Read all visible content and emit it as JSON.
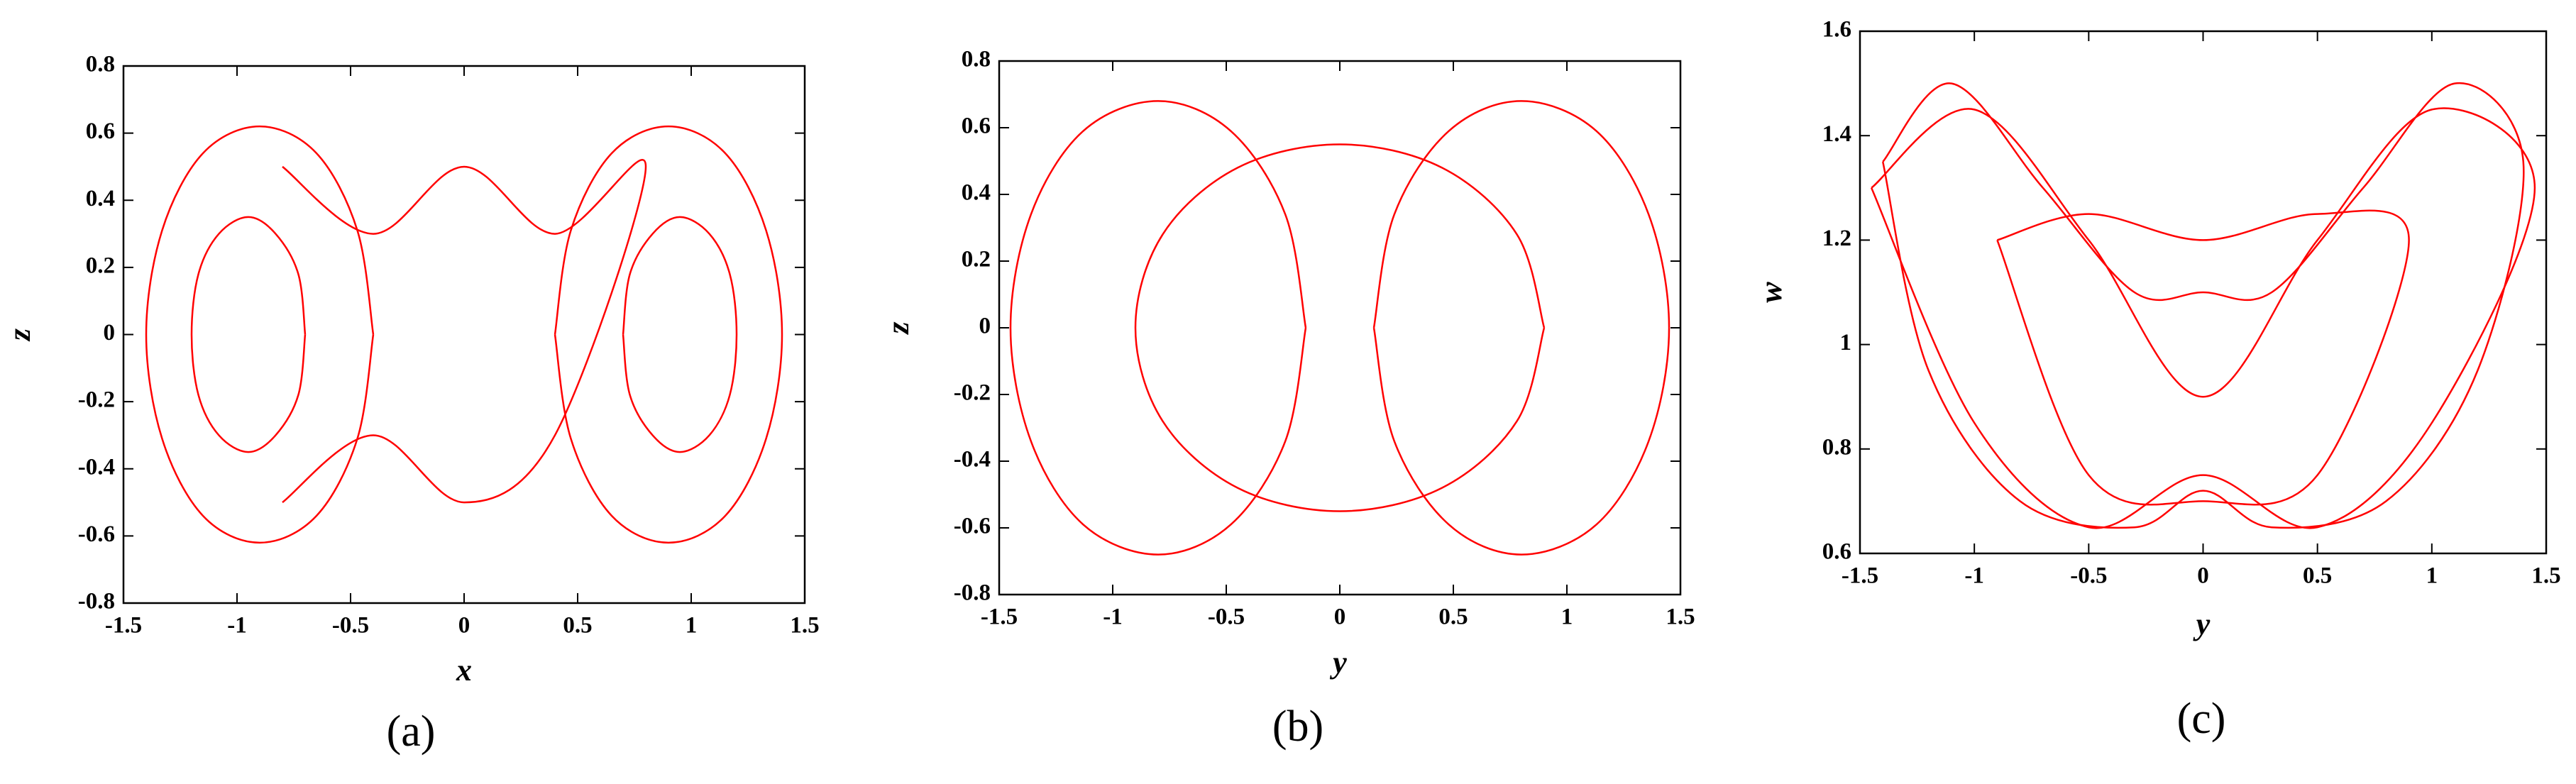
{
  "chart_data": [
    {
      "type": "line",
      "xlabel": "x",
      "ylabel": "z",
      "caption": "(a)",
      "xlim": [
        -1.5,
        1.5
      ],
      "ylim": [
        -0.8,
        0.8
      ],
      "xticks": [
        -1.5,
        -1,
        -0.5,
        0,
        0.5,
        1,
        1.5
      ],
      "yticks": [
        -0.8,
        -0.6,
        -0.4,
        -0.2,
        0,
        0.2,
        0.4,
        0.6,
        0.8
      ],
      "series": [
        {
          "color": "#ff0000",
          "x": [
            -0.4,
            -0.47,
            -0.65,
            -0.9,
            -1.15,
            -1.33,
            -1.4,
            -1.33,
            -1.15,
            -0.9,
            -0.65,
            -0.47,
            -0.4
          ],
          "values": [
            0,
            0.31,
            0.54,
            0.62,
            0.54,
            0.31,
            0,
            -0.31,
            -0.54,
            -0.62,
            -0.54,
            -0.31,
            0
          ]
        },
        {
          "color": "#ff0000",
          "x": [
            -0.7,
            -0.73,
            -0.83,
            -0.95,
            -1.08,
            -1.17,
            -1.2,
            -1.17,
            -1.08,
            -0.95,
            -0.83,
            -0.73,
            -0.7
          ],
          "values": [
            0,
            0.18,
            0.3,
            0.35,
            0.3,
            0.18,
            0,
            -0.18,
            -0.3,
            -0.35,
            -0.3,
            -0.18,
            0
          ]
        },
        {
          "color": "#ff0000",
          "x": [
            0.4,
            0.47,
            0.65,
            0.9,
            1.15,
            1.33,
            1.4,
            1.33,
            1.15,
            0.9,
            0.65,
            0.47,
            0.4
          ],
          "values": [
            0,
            0.31,
            0.54,
            0.62,
            0.54,
            0.31,
            0,
            -0.31,
            -0.54,
            -0.62,
            -0.54,
            -0.31,
            0
          ]
        },
        {
          "color": "#ff0000",
          "x": [
            0.7,
            0.73,
            0.83,
            0.95,
            1.08,
            1.17,
            1.2,
            1.17,
            1.08,
            0.95,
            0.83,
            0.73,
            0.7
          ],
          "values": [
            0,
            0.18,
            0.3,
            0.35,
            0.3,
            0.18,
            0,
            -0.18,
            -0.3,
            -0.35,
            -0.3,
            -0.18,
            0
          ]
        },
        {
          "color": "#ff0000",
          "x": [
            -0.8,
            -0.4,
            0,
            0.4,
            0.8,
            0.4,
            0,
            -0.4,
            -0.8
          ],
          "values": [
            0.5,
            0.3,
            0.5,
            0.3,
            0.5,
            -0.3,
            -0.5,
            -0.3,
            -0.5
          ]
        }
      ]
    },
    {
      "type": "line",
      "xlabel": "y",
      "ylabel": "z",
      "caption": "(b)",
      "xlim": [
        -1.5,
        1.5
      ],
      "ylim": [
        -0.8,
        0.8
      ],
      "xticks": [
        -1.5,
        -1,
        -0.5,
        0,
        0.5,
        1,
        1.5
      ],
      "yticks": [
        -0.8,
        -0.6,
        -0.4,
        -0.2,
        0,
        0.2,
        0.4,
        0.6,
        0.8
      ],
      "series": [
        {
          "color": "#ff0000",
          "x": [
            -0.15,
            -0.24,
            -0.48,
            -0.8,
            -1.13,
            -1.36,
            -1.45,
            -1.36,
            -1.13,
            -0.8,
            -0.48,
            -0.24,
            -0.15
          ],
          "values": [
            0,
            0.34,
            0.59,
            0.68,
            0.59,
            0.34,
            0,
            -0.34,
            -0.59,
            -0.68,
            -0.59,
            -0.34,
            0
          ]
        },
        {
          "color": "#ff0000",
          "x": [
            0.15,
            0.24,
            0.48,
            0.8,
            1.13,
            1.36,
            1.45,
            1.36,
            1.13,
            0.8,
            0.48,
            0.24,
            0.15
          ],
          "values": [
            0,
            0.34,
            0.59,
            0.68,
            0.59,
            0.34,
            0,
            -0.34,
            -0.59,
            -0.68,
            -0.59,
            -0.34,
            0
          ]
        },
        {
          "color": "#ff0000",
          "x": [
            0.9,
            0.78,
            0.45,
            0,
            -0.45,
            -0.78,
            -0.9,
            -0.78,
            -0.45,
            0,
            0.45,
            0.78,
            0.9
          ],
          "values": [
            0,
            0.28,
            0.48,
            0.55,
            0.48,
            0.28,
            0,
            -0.28,
            -0.48,
            -0.55,
            -0.48,
            -0.28,
            0
          ]
        }
      ]
    },
    {
      "type": "line",
      "xlabel": "y",
      "ylabel": "w",
      "caption": "(c)",
      "xlim": [
        -1.5,
        1.5
      ],
      "ylim": [
        0.6,
        1.6
      ],
      "xticks": [
        -1.5,
        -1,
        -0.5,
        0,
        0.5,
        1,
        1.5
      ],
      "yticks": [
        0.6,
        0.8,
        1,
        1.2,
        1.4,
        1.6
      ],
      "series": [
        {
          "color": "#ff0000",
          "x": [
            -1.4,
            -1.1,
            -0.7,
            -0.3,
            0,
            0.3,
            0.7,
            1.1,
            1.4,
            1.2,
            0.8,
            0.3,
            0,
            -0.3,
            -0.8,
            -1.2,
            -1.4
          ],
          "values": [
            1.35,
            1.5,
            1.3,
            1.1,
            1.1,
            1.1,
            1.3,
            1.5,
            1.35,
            0.95,
            0.7,
            0.65,
            0.72,
            0.65,
            0.7,
            0.95,
            1.35
          ]
        },
        {
          "color": "#ff0000",
          "x": [
            -0.9,
            -0.5,
            0,
            0.5,
            0.9,
            0.5,
            0,
            -0.5,
            -0.9
          ],
          "values": [
            1.2,
            1.25,
            1.2,
            1.25,
            1.2,
            0.75,
            0.7,
            0.75,
            1.2
          ]
        },
        {
          "color": "#ff0000",
          "x": [
            -1.45,
            -1,
            -0.5,
            0,
            0.5,
            1,
            1.45,
            1,
            0.5,
            0,
            -0.5,
            -1,
            -1.45
          ],
          "values": [
            1.3,
            1.45,
            1.2,
            0.9,
            1.2,
            1.45,
            1.3,
            0.85,
            0.65,
            0.75,
            0.65,
            0.85,
            1.3
          ]
        }
      ]
    }
  ]
}
